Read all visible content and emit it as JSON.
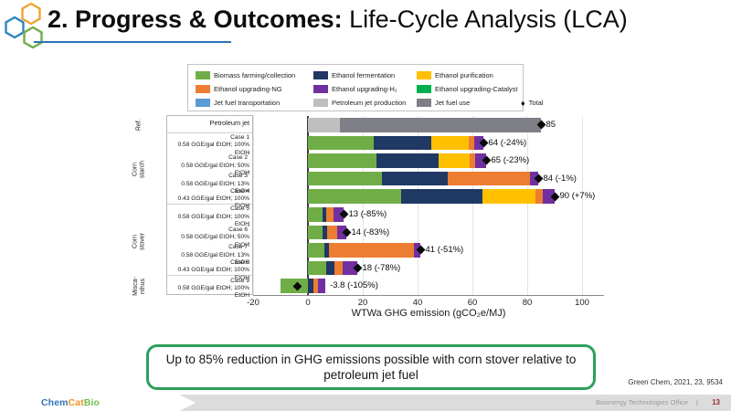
{
  "slide": {
    "title_prefix": "2. Progress & Outcomes: ",
    "title_main": "Life-Cycle Analysis (LCA)",
    "callout_text": "Up to 85% reduction in GHG emissions possible with corn stover relative to petroleum jet fuel",
    "citation": "Green Chem, 2021, 23, 9534",
    "footer": {
      "brand": {
        "chem": "Chem",
        "cat": "Cat",
        "bio": "Bio"
      },
      "office_label": "Bioenergy Technologies Office",
      "divider": "|",
      "page_number": "13"
    },
    "accent_colors": {
      "title_underline": "#2e75b6",
      "callout_border": "#2e9e5b",
      "logo_hex_blue": "#2e86c1",
      "logo_hex_orange": "#f0a433",
      "logo_hex_green": "#70ad47"
    }
  },
  "chart_data": {
    "type": "bar",
    "orientation": "horizontal",
    "stacked": true,
    "title": "",
    "xlabel": "WTWa GHG emission (gCO₂e/MJ)",
    "ylabel": "",
    "xlim": [
      -20,
      108
    ],
    "xticks": [
      -20,
      0,
      20,
      40,
      60,
      80,
      100
    ],
    "grid": "vertical-light",
    "legend_position": "top",
    "total_marker": "black diamond",
    "legend_rows": [
      [
        {
          "label": "Biomass farming/collection",
          "color": "#70ad47"
        },
        {
          "label": "Ethanol fermentation",
          "color": "#1f3864"
        },
        {
          "label": "Ethanol purification",
          "color": "#ffc000"
        }
      ],
      [
        {
          "label": "Ethanol upgrading-NG",
          "color": "#ed7d31"
        },
        {
          "label": "Ethanol upgrading-H₂",
          "color": "#7030a0"
        },
        {
          "label": "Ethanol upgrading-Catalyst",
          "color": "#00b050"
        }
      ],
      [
        {
          "label": "Jet fuel transportation",
          "color": "#5b9bd5"
        },
        {
          "label": "Petroleum jet production",
          "color": "#bfbfbf"
        },
        {
          "label": "Jet fuel use",
          "color": "#7f7f88"
        },
        {
          "label": "Total",
          "marker": "diamond"
        }
      ]
    ],
    "groups": [
      {
        "name": "Ref.",
        "display": "Ref.",
        "rows": [
          {
            "label": "Petroleum jet",
            "star": false,
            "sublabel": "",
            "segments": [
              {
                "name": "Petroleum jet production",
                "value": 11.5
              },
              {
                "name": "Jet fuel use",
                "value": 73.5
              }
            ],
            "total": 85,
            "total_label": "85"
          }
        ]
      },
      {
        "name": "Corn starch",
        "display": "Corn starch",
        "rows": [
          {
            "label": "Case 1",
            "star": false,
            "sublabel": "0.58 GGE/gal EtOH; 100% EtOH",
            "segments": [
              {
                "name": "Biomass farming/collection",
                "value": 24
              },
              {
                "name": "Ethanol fermentation",
                "value": 21
              },
              {
                "name": "Ethanol purification",
                "value": 13.5
              },
              {
                "name": "Ethanol upgrading-NG",
                "value": 2
              },
              {
                "name": "Ethanol upgrading-H₂",
                "value": 3.5
              }
            ],
            "total": 64,
            "total_label": "64 (-24%)"
          },
          {
            "label": "Case 2",
            "star": true,
            "sublabel": "0.58 GGE/gal EtOH; 50% EtOH",
            "segments": [
              {
                "name": "Biomass farming/collection",
                "value": 25
              },
              {
                "name": "Ethanol fermentation",
                "value": 22.5
              },
              {
                "name": "Ethanol purification",
                "value": 11.5
              },
              {
                "name": "Ethanol upgrading-NG",
                "value": 2
              },
              {
                "name": "Ethanol upgrading-H₂",
                "value": 4
              }
            ],
            "total": 65,
            "total_label": "65 (-23%)"
          },
          {
            "label": "Case 3",
            "star": true,
            "sublabel": "0.58 GGE/gal EtOH; 13% EtOH",
            "segments": [
              {
                "name": "Biomass farming/collection",
                "value": 27
              },
              {
                "name": "Ethanol fermentation",
                "value": 24
              },
              {
                "name": "Ethanol upgrading-NG",
                "value": 30
              },
              {
                "name": "Ethanol upgrading-H₂",
                "value": 3
              }
            ],
            "total": 84,
            "total_label": "84 (-1%)"
          },
          {
            "label": "Case 4",
            "star": false,
            "sublabel": "0.43 GGE/gal EtOH; 100% EtOH",
            "segments": [
              {
                "name": "Biomass farming/collection",
                "value": 34
              },
              {
                "name": "Ethanol fermentation",
                "value": 29.5
              },
              {
                "name": "Ethanol purification",
                "value": 19.5
              },
              {
                "name": "Ethanol upgrading-NG",
                "value": 2.5
              },
              {
                "name": "Ethanol upgrading-H₂",
                "value": 4.5
              }
            ],
            "total": 90,
            "total_label": "90 (+7%)"
          }
        ]
      },
      {
        "name": "Corn stover",
        "display": "Corn stover",
        "rows": [
          {
            "label": "Case 5",
            "star": false,
            "sublabel": "0.58 GGE/gal EtOH; 100% EtOH",
            "segments": [
              {
                "name": "Biomass farming/collection",
                "value": 5.2
              },
              {
                "name": "Ethanol fermentation",
                "value": 1.6
              },
              {
                "name": "Ethanol upgrading-NG",
                "value": 2.6
              },
              {
                "name": "Ethanol upgrading-H₂",
                "value": 3.6
              }
            ],
            "total": 13,
            "total_label": "13 (-85%)"
          },
          {
            "label": "Case 6",
            "star": true,
            "sublabel": "0.58 GGE/gal EtOH; 50% EtOH",
            "segments": [
              {
                "name": "Biomass farming/collection",
                "value": 5.4
              },
              {
                "name": "Ethanol fermentation",
                "value": 1.6
              },
              {
                "name": "Ethanol upgrading-NG",
                "value": 3.8
              },
              {
                "name": "Ethanol upgrading-H₂",
                "value": 3.2
              }
            ],
            "total": 14,
            "total_label": "14 (-83%)"
          },
          {
            "label": "Case 7",
            "star": true,
            "sublabel": "0.58 GGE/gal EtOH; 13% EtOH",
            "segments": [
              {
                "name": "Biomass farming/collection",
                "value": 6
              },
              {
                "name": "Ethanol fermentation",
                "value": 1.5
              },
              {
                "name": "Ethanol upgrading-NG",
                "value": 31
              },
              {
                "name": "Ethanol upgrading-H₂",
                "value": 2.5
              }
            ],
            "total": 41,
            "total_label": "41 (-51%)"
          },
          {
            "label": "Case 8",
            "star": false,
            "sublabel": "0.43 GGE/gal EtOH; 100% EtOH",
            "segments": [
              {
                "name": "Biomass farming/collection",
                "value": 6.8
              },
              {
                "name": "Ethanol fermentation",
                "value": 2.8
              },
              {
                "name": "Ethanol upgrading-NG",
                "value": 3.2
              },
              {
                "name": "Ethanol upgrading-H₂",
                "value": 5.2
              }
            ],
            "total": 18,
            "total_label": "18 (-78%)"
          }
        ]
      },
      {
        "name": "Miscanthus",
        "display": "Misca-\nnthus",
        "rows": [
          {
            "label": "Case 9",
            "star": false,
            "sublabel": "0.58 GGE/gal EtOH; 100% EtOH",
            "segments": [
              {
                "name": "Biomass farming/collection",
                "value": -10
              },
              {
                "name": "Ethanol fermentation",
                "value": 2
              },
              {
                "name": "Ethanol upgrading-NG",
                "value": 1.5
              },
              {
                "name": "Ethanol upgrading-H₂",
                "value": 2.7
              }
            ],
            "total": -3.8,
            "total_label": "-3.8 (-105%)"
          }
        ]
      }
    ]
  }
}
